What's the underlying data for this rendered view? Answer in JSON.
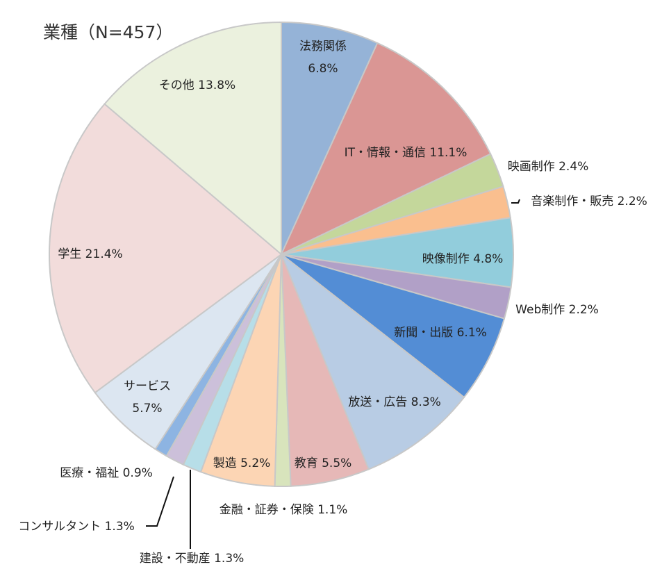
{
  "chart_data": {
    "type": "pie",
    "title": "業種（N=457）",
    "unit": "%",
    "slices": [
      {
        "label": "法務関係",
        "value": 6.8,
        "color": "#95b3d7"
      },
      {
        "label": "IT・情報・通信",
        "value": 11.1,
        "color": "#da9694"
      },
      {
        "label": "映画制作",
        "value": 2.4,
        "color": "#c4d79b"
      },
      {
        "label": "音楽制作・販売",
        "value": 2.2,
        "color": "#fabf8f"
      },
      {
        "label": "映像制作",
        "value": 4.8,
        "color": "#92cddc"
      },
      {
        "label": "Web制作",
        "value": 2.2,
        "color": "#b1a0c7"
      },
      {
        "label": "新聞・出版",
        "value": 6.1,
        "color": "#538dd5"
      },
      {
        "label": "放送・広告",
        "value": 8.3,
        "color": "#b8cce4"
      },
      {
        "label": "教育",
        "value": 5.5,
        "color": "#e6b8b7"
      },
      {
        "label": "金融・証券・保険",
        "value": 1.1,
        "color": "#d8e4bc"
      },
      {
        "label": "製造",
        "value": 5.2,
        "color": "#fcd5b4"
      },
      {
        "label": "建設・不動産",
        "value": 1.3,
        "color": "#b7dee8"
      },
      {
        "label": "コンサルタント",
        "value": 1.3,
        "color": "#ccc0da"
      },
      {
        "label": "医療・福祉",
        "value": 0.9,
        "color": "#8db4e2"
      },
      {
        "label": "サービス",
        "value": 5.7,
        "color": "#dce6f1"
      },
      {
        "label": "学生",
        "value": 21.4,
        "color": "#f2dcdb"
      },
      {
        "label": "その他",
        "value": 13.8,
        "color": "#ebf1de"
      }
    ],
    "data_labels": [
      {
        "lines": [
          "法務関係",
          "6.8%"
        ]
      },
      {
        "lines": [
          "IT・情報・通信 11.1%"
        ]
      },
      {
        "lines": [
          "映画制作 2.4%"
        ]
      },
      {
        "lines": [
          "音楽制作・販売 2.2%"
        ]
      },
      {
        "lines": [
          "映像制作 4.8%"
        ]
      },
      {
        "lines": [
          "Web制作 2.2%"
        ]
      },
      {
        "lines": [
          "新聞・出版 6.1%"
        ]
      },
      {
        "lines": [
          "放送・広告 8.3%"
        ]
      },
      {
        "lines": [
          "教育 5.5%"
        ]
      },
      {
        "lines": [
          "金融・証券・保険 1.1%"
        ]
      },
      {
        "lines": [
          "製造 5.2%"
        ]
      },
      {
        "lines": [
          "建設・不動産 1.3%"
        ]
      },
      {
        "lines": [
          "コンサルタント 1.3%"
        ]
      },
      {
        "lines": [
          "医療・福祉 0.9%"
        ]
      },
      {
        "lines": [
          "サービス",
          "5.7%"
        ]
      },
      {
        "lines": [
          "学生 21.4%"
        ]
      },
      {
        "lines": [
          "その他 13.8%"
        ]
      }
    ]
  }
}
